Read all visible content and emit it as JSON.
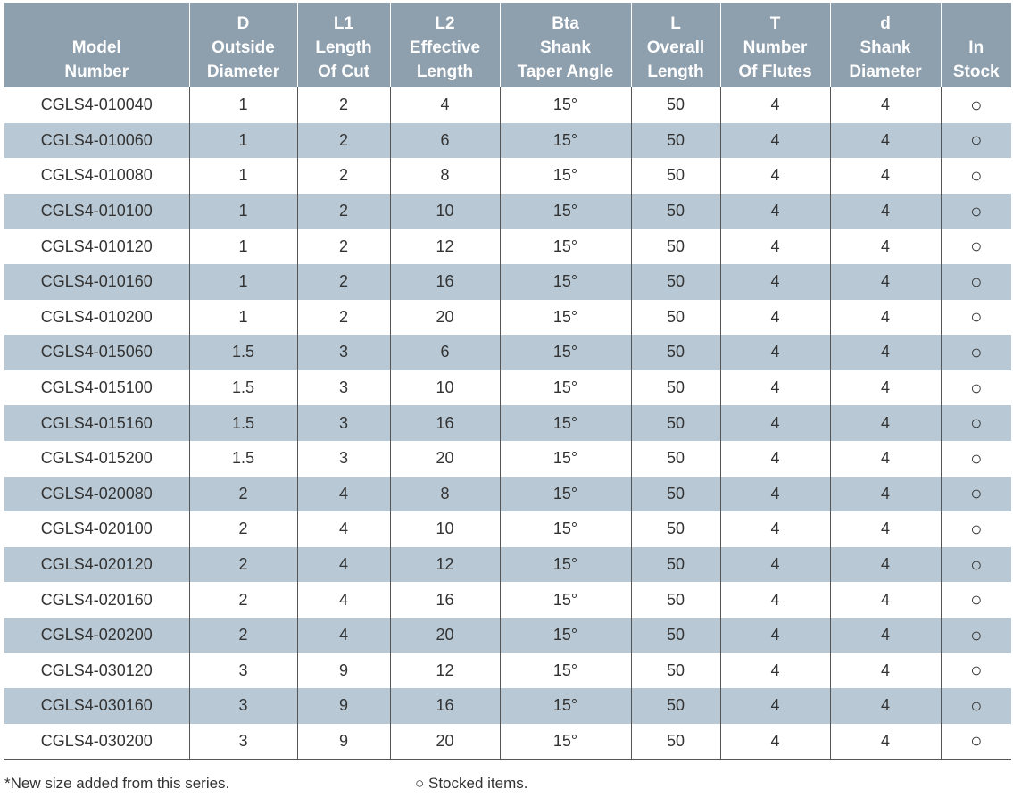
{
  "table": {
    "header": [
      [
        "Model",
        "Number"
      ],
      [
        "D",
        "Outside",
        "Diameter"
      ],
      [
        "L1",
        "Length",
        "Of Cut"
      ],
      [
        "L2",
        "Effective",
        "Length"
      ],
      [
        "Bta",
        "Shank",
        "Taper Angle"
      ],
      [
        "L",
        "Overall",
        "Length"
      ],
      [
        "T",
        "Number",
        "Of Flutes"
      ],
      [
        "d",
        "Shank",
        "Diameter"
      ],
      [
        "In",
        "Stock"
      ]
    ],
    "rows": [
      [
        "CGLS4-010040",
        "1",
        "2",
        "4",
        "15°",
        "50",
        "4",
        "4",
        "○"
      ],
      [
        "CGLS4-010060",
        "1",
        "2",
        "6",
        "15°",
        "50",
        "4",
        "4",
        "○"
      ],
      [
        "CGLS4-010080",
        "1",
        "2",
        "8",
        "15°",
        "50",
        "4",
        "4",
        "○"
      ],
      [
        "CGLS4-010100",
        "1",
        "2",
        "10",
        "15°",
        "50",
        "4",
        "4",
        "○"
      ],
      [
        "CGLS4-010120",
        "1",
        "2",
        "12",
        "15°",
        "50",
        "4",
        "4",
        "○"
      ],
      [
        "CGLS4-010160",
        "1",
        "2",
        "16",
        "15°",
        "50",
        "4",
        "4",
        "○"
      ],
      [
        "CGLS4-010200",
        "1",
        "2",
        "20",
        "15°",
        "50",
        "4",
        "4",
        "○"
      ],
      [
        "CGLS4-015060",
        "1.5",
        "3",
        "6",
        "15°",
        "50",
        "4",
        "4",
        "○"
      ],
      [
        "CGLS4-015100",
        "1.5",
        "3",
        "10",
        "15°",
        "50",
        "4",
        "4",
        "○"
      ],
      [
        "CGLS4-015160",
        "1.5",
        "3",
        "16",
        "15°",
        "50",
        "4",
        "4",
        "○"
      ],
      [
        "CGLS4-015200",
        "1.5",
        "3",
        "20",
        "15°",
        "50",
        "4",
        "4",
        "○"
      ],
      [
        "CGLS4-020080",
        "2",
        "4",
        "8",
        "15°",
        "50",
        "4",
        "4",
        "○"
      ],
      [
        "CGLS4-020100",
        "2",
        "4",
        "10",
        "15°",
        "50",
        "4",
        "4",
        "○"
      ],
      [
        "CGLS4-020120",
        "2",
        "4",
        "12",
        "15°",
        "50",
        "4",
        "4",
        "○"
      ],
      [
        "CGLS4-020160",
        "2",
        "4",
        "16",
        "15°",
        "50",
        "4",
        "4",
        "○"
      ],
      [
        "CGLS4-020200",
        "2",
        "4",
        "20",
        "15°",
        "50",
        "4",
        "4",
        "○"
      ],
      [
        "CGLS4-030120",
        "3",
        "9",
        "12",
        "15°",
        "50",
        "4",
        "4",
        "○"
      ],
      [
        "CGLS4-030160",
        "3",
        "9",
        "16",
        "15°",
        "50",
        "4",
        "4",
        "○"
      ],
      [
        "CGLS4-030200",
        "3",
        "9",
        "20",
        "15°",
        "50",
        "4",
        "4",
        "○"
      ]
    ]
  },
  "footer": {
    "note": "*New size added from this series.",
    "legend": "○ Stocked items."
  }
}
